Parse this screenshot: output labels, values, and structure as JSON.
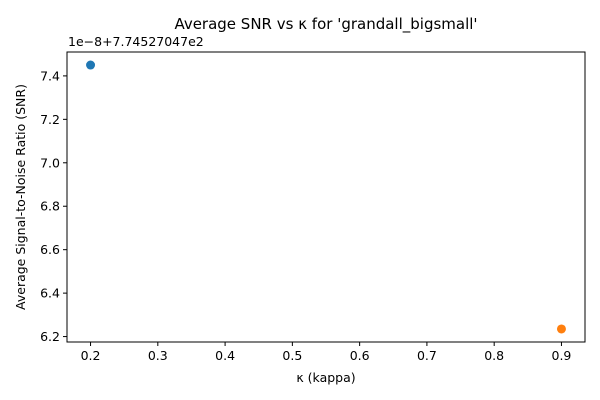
{
  "chart_data": {
    "type": "scatter",
    "title": "Average SNR vs κ for 'grandall_bigsmall'",
    "xlabel": "κ (kappa)",
    "ylabel": "Average Signal-to-Noise Ratio (SNR)",
    "y_offset_text": "1e−8+7.74527047e2",
    "y_offset": 774.527047,
    "y_tick_scale": 1e-08,
    "xlim": [
      0.165,
      0.935
    ],
    "ylim_scaled": [
      6.175,
      7.51
    ],
    "x_ticks": [
      0.2,
      0.3,
      0.4,
      0.5,
      0.6,
      0.7,
      0.8,
      0.9
    ],
    "x_tick_labels": [
      "0.2",
      "0.3",
      "0.4",
      "0.5",
      "0.6",
      "0.7",
      "0.8",
      "0.9"
    ],
    "y_ticks_scaled": [
      6.2,
      6.4,
      6.6,
      6.8,
      7.0,
      7.2,
      7.4
    ],
    "y_tick_labels": [
      "6.2",
      "6.4",
      "6.6",
      "6.8",
      "7.0",
      "7.2",
      "7.4"
    ],
    "grid": false,
    "series": [
      {
        "x": [
          0.2
        ],
        "y_scaled": [
          7.45
        ],
        "color": "#1f77b4"
      },
      {
        "x": [
          0.9
        ],
        "y_scaled": [
          6.235
        ],
        "color": "#ff7f0e"
      }
    ]
  }
}
